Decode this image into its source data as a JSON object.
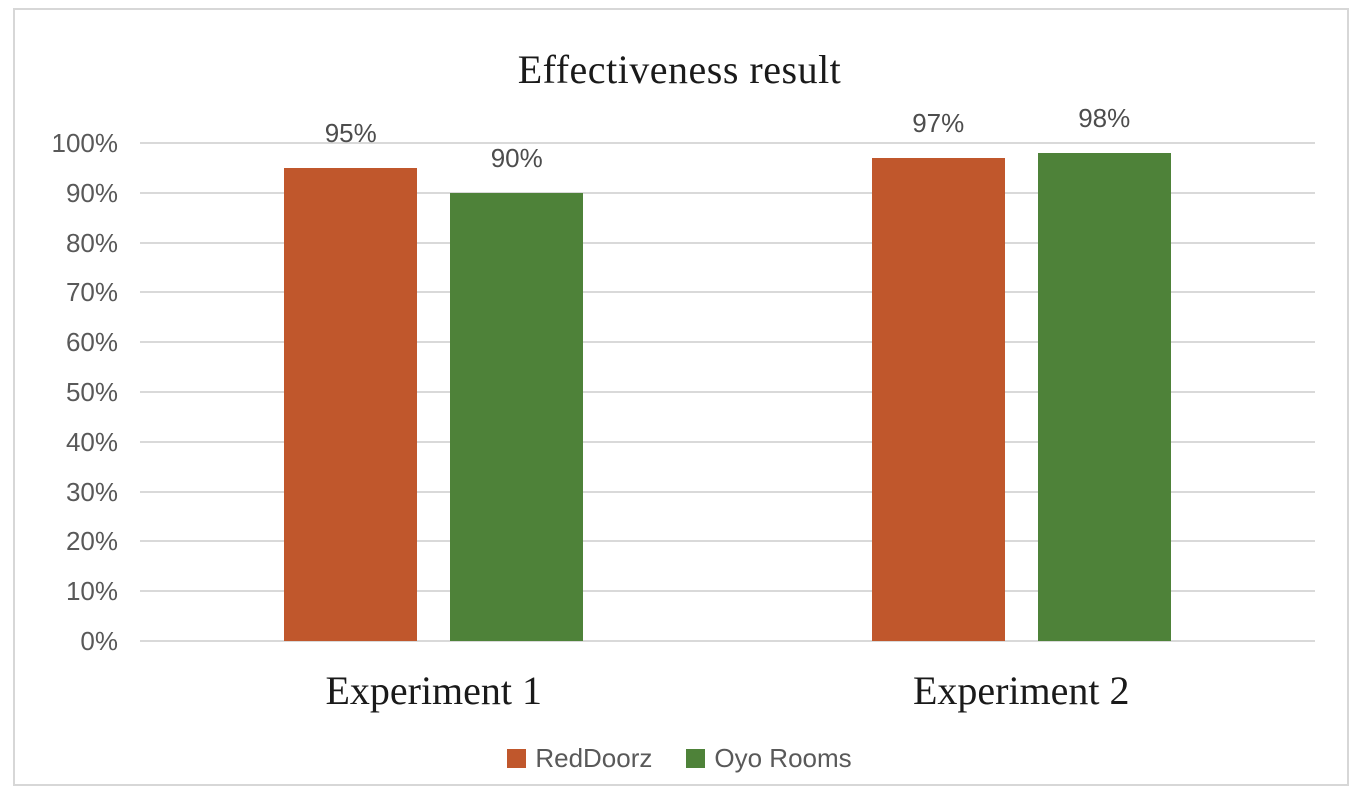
{
  "chart_data": {
    "type": "bar",
    "title": "Effectiveness result",
    "categories": [
      "Experiment 1",
      "Experiment 2"
    ],
    "series": [
      {
        "name": "RedDoorz",
        "color": "#C0572C",
        "values": [
          95,
          97
        ],
        "data_labels": [
          "95%",
          "97%"
        ]
      },
      {
        "name": "Oyo Rooms",
        "color": "#4E8239",
        "values": [
          90,
          98
        ],
        "data_labels": [
          "90%",
          "98%"
        ]
      }
    ],
    "ylabel": "",
    "xlabel": "",
    "ylim": [
      0,
      100
    ],
    "y_tick_labels": [
      "0%",
      "10%",
      "20%",
      "30%",
      "40%",
      "50%",
      "60%",
      "70%",
      "80%",
      "90%",
      "100%"
    ],
    "grid": true,
    "legend_position": "bottom"
  },
  "colors": {
    "grid": "#d9d9d9",
    "frame_border": "#d7d7d7",
    "axis_text": "#595959",
    "data_label_text": "#4d4d4d",
    "title_text": "#1a1a1a",
    "background": "#ffffff"
  }
}
